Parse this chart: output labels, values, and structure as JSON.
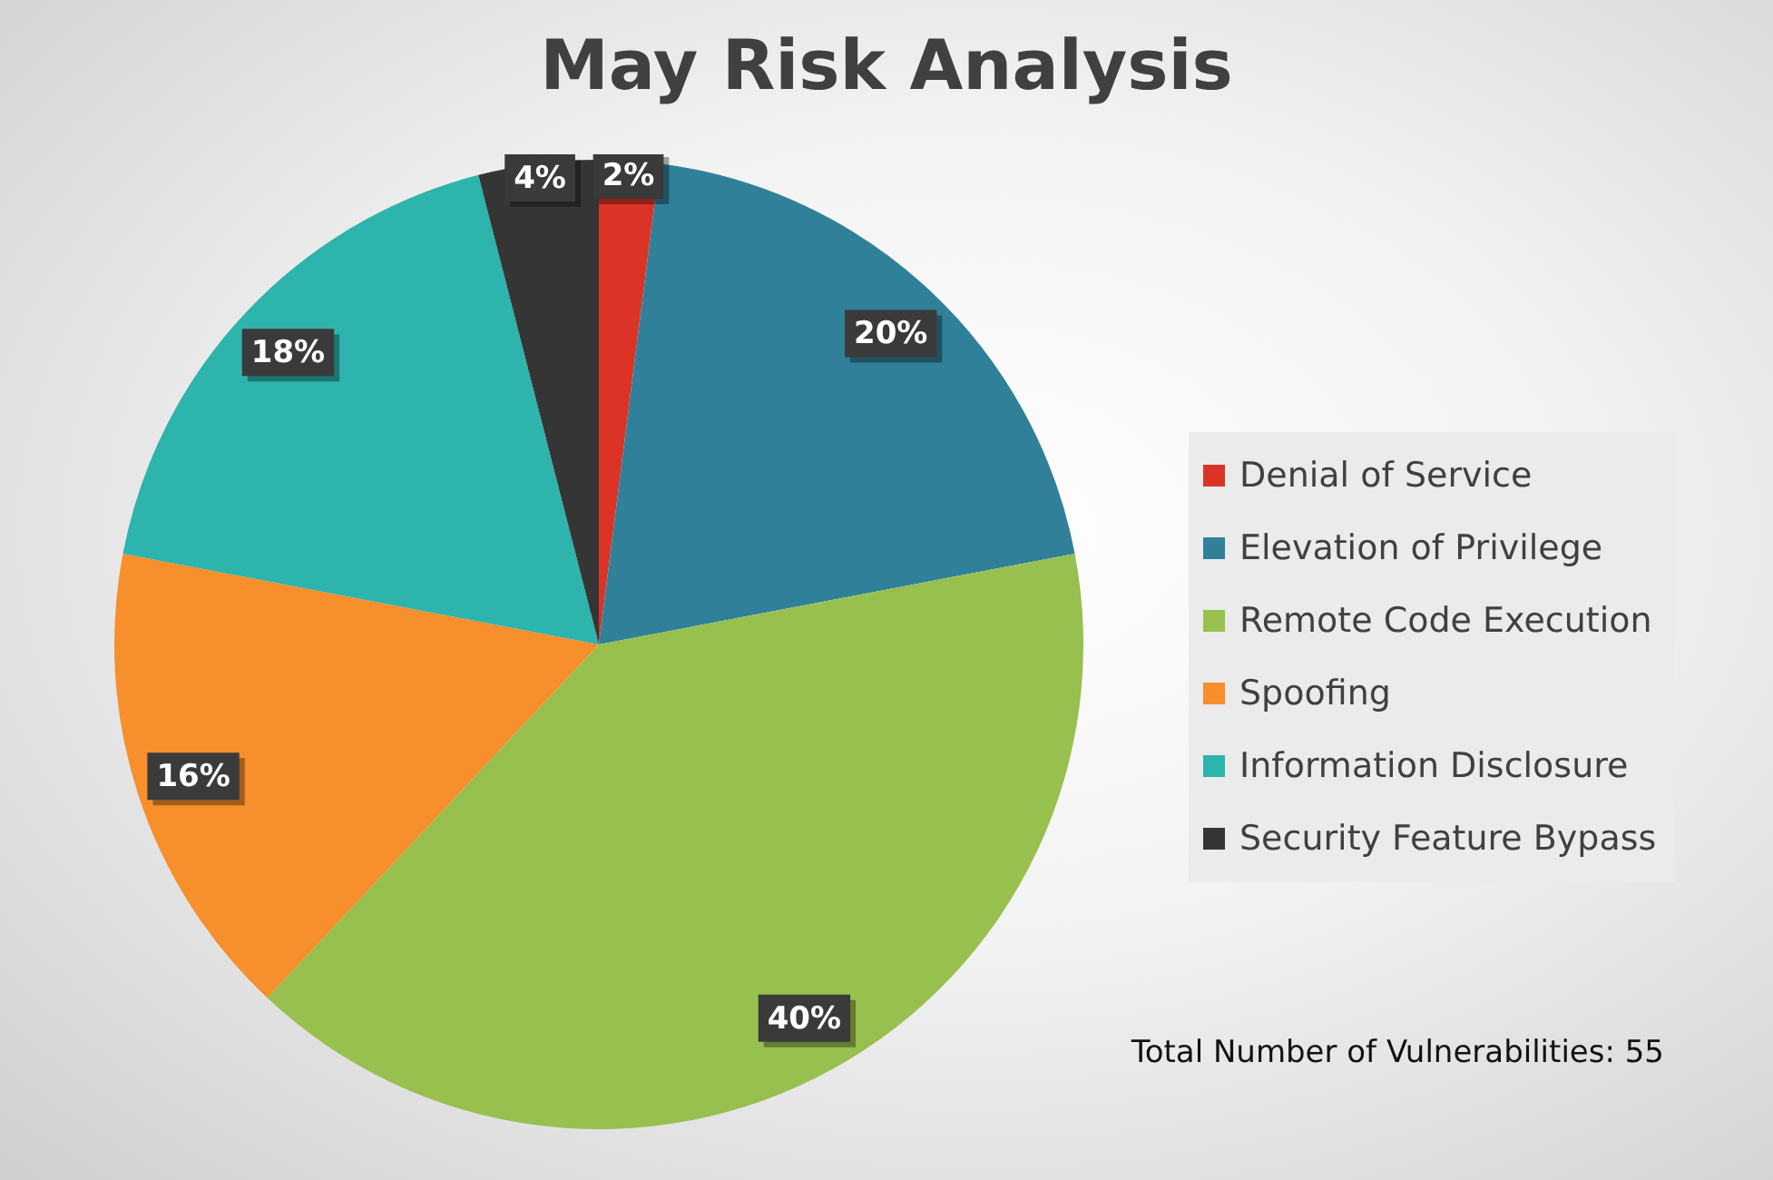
{
  "chart_data": {
    "type": "pie",
    "title": "May Risk Analysis",
    "categories": [
      "Denial of Service",
      "Elevation of Privilege",
      "Remote Code Execution",
      "Spoofing",
      "Information Disclosure",
      "Security Feature Bypass"
    ],
    "values": [
      2,
      20,
      40,
      16,
      18,
      4
    ],
    "colors": [
      "#dc3327",
      "#31809a",
      "#97c04f",
      "#f68f2c",
      "#2db4ac",
      "#353535"
    ],
    "value_labels": [
      "2%",
      "20%",
      "40%",
      "16%",
      "18%",
      "4%"
    ],
    "legend": "right",
    "annotations": [
      "Total Number of Vulnerabilities: 55"
    ]
  }
}
